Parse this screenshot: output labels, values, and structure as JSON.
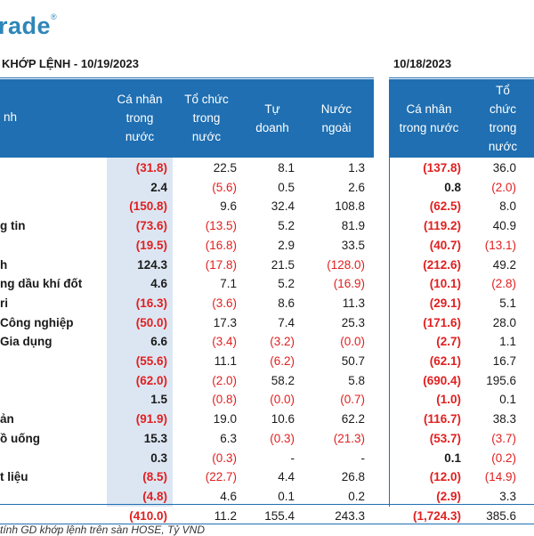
{
  "header": {
    "logo_text": "rade",
    "logo_mark": "®",
    "title_left": "KHỚP LỆNH - 10/19/2023",
    "title_right": "10/18/2023"
  },
  "columns_left": {
    "row_header": "nh",
    "c1": [
      "Cá nhân",
      "trong",
      "nước"
    ],
    "c2": [
      "Tổ chức",
      "trong",
      "nước"
    ],
    "c3": [
      "Tự",
      "doanh"
    ],
    "c4": [
      "Nước",
      "ngoài"
    ]
  },
  "columns_right": {
    "c1": [
      "Cá nhân",
      "trong nước"
    ],
    "c2": [
      "Tổ",
      "chức",
      "trong",
      "nước"
    ]
  },
  "rows": [
    {
      "label": "",
      "v": [
        "(31.8)",
        "22.5",
        "8.1",
        "1.3",
        "(137.8)",
        "36.0"
      ]
    },
    {
      "label": "",
      "v": [
        "2.4",
        "(5.6)",
        "0.5",
        "2.6",
        "0.8",
        "(2.0)"
      ]
    },
    {
      "label": "",
      "v": [
        "(150.8)",
        "9.6",
        "32.4",
        "108.8",
        "(62.5)",
        "8.0"
      ]
    },
    {
      "label": "g tin",
      "v": [
        "(73.6)",
        "(13.5)",
        "5.2",
        "81.9",
        "(119.2)",
        "40.9"
      ]
    },
    {
      "label": "",
      "v": [
        "(19.5)",
        "(16.8)",
        "2.9",
        "33.5",
        "(40.7)",
        "(13.1)"
      ]
    },
    {
      "label": "h",
      "v": [
        "124.3",
        "(17.8)",
        "21.5",
        "(128.0)",
        "(212.6)",
        "49.2"
      ]
    },
    {
      "label": "ng dầu khí đốt",
      "v": [
        "4.6",
        "7.1",
        "5.2",
        "(16.9)",
        "(10.1)",
        "(2.8)"
      ]
    },
    {
      "label": "ri",
      "v": [
        "(16.3)",
        "(3.6)",
        "8.6",
        "11.3",
        "(29.1)",
        "5.1"
      ]
    },
    {
      "label": " Công nghiệp",
      "v": [
        "(50.0)",
        "17.3",
        "7.4",
        "25.3",
        "(171.6)",
        "28.0"
      ]
    },
    {
      "label": "Gia dụng",
      "v": [
        "6.6",
        "(3.4)",
        "(3.2)",
        "(0.0)",
        "(2.7)",
        "1.1"
      ]
    },
    {
      "label": "",
      "v": [
        "(55.6)",
        "11.1",
        "(6.2)",
        "50.7",
        "(62.1)",
        "16.7"
      ]
    },
    {
      "label": "",
      "v": [
        "(62.0)",
        "(2.0)",
        "58.2",
        "5.8",
        "(690.4)",
        "195.6"
      ]
    },
    {
      "label": "",
      "v": [
        "1.5",
        "(0.8)",
        "(0.0)",
        "(0.7)",
        "(1.0)",
        "0.1"
      ]
    },
    {
      "label": "ản",
      "v": [
        "(91.9)",
        "19.0",
        "10.6",
        "62.2",
        "(116.7)",
        "38.3"
      ]
    },
    {
      "label": "ồ uống",
      "v": [
        "15.3",
        "6.3",
        "(0.3)",
        "(21.3)",
        "(53.7)",
        "(3.7)"
      ]
    },
    {
      "label": "",
      "v": [
        "0.3",
        "(0.3)",
        "-",
        "-",
        "0.1",
        "(0.2)"
      ]
    },
    {
      "label": "t liệu",
      "v": [
        "(8.5)",
        "(22.7)",
        "4.4",
        "26.8",
        "(12.0)",
        "(14.9)"
      ]
    },
    {
      "label": "",
      "v": [
        "(4.8)",
        "4.6",
        "0.1",
        "0.2",
        "(2.9)",
        "3.3"
      ]
    },
    {
      "label": "",
      "v": [
        "(410.0)",
        "11.2",
        "155.4",
        "243.3",
        "(1,724.3)",
        "385.6"
      ]
    }
  ],
  "footer": "tính GD khớp lệnh trên sàn HOSE, Tỷ VND",
  "colors": {
    "header_blue": "#1f6fb2",
    "shade": "#dce6f2",
    "negative": "#e02020",
    "logo": "#2e86b8"
  }
}
